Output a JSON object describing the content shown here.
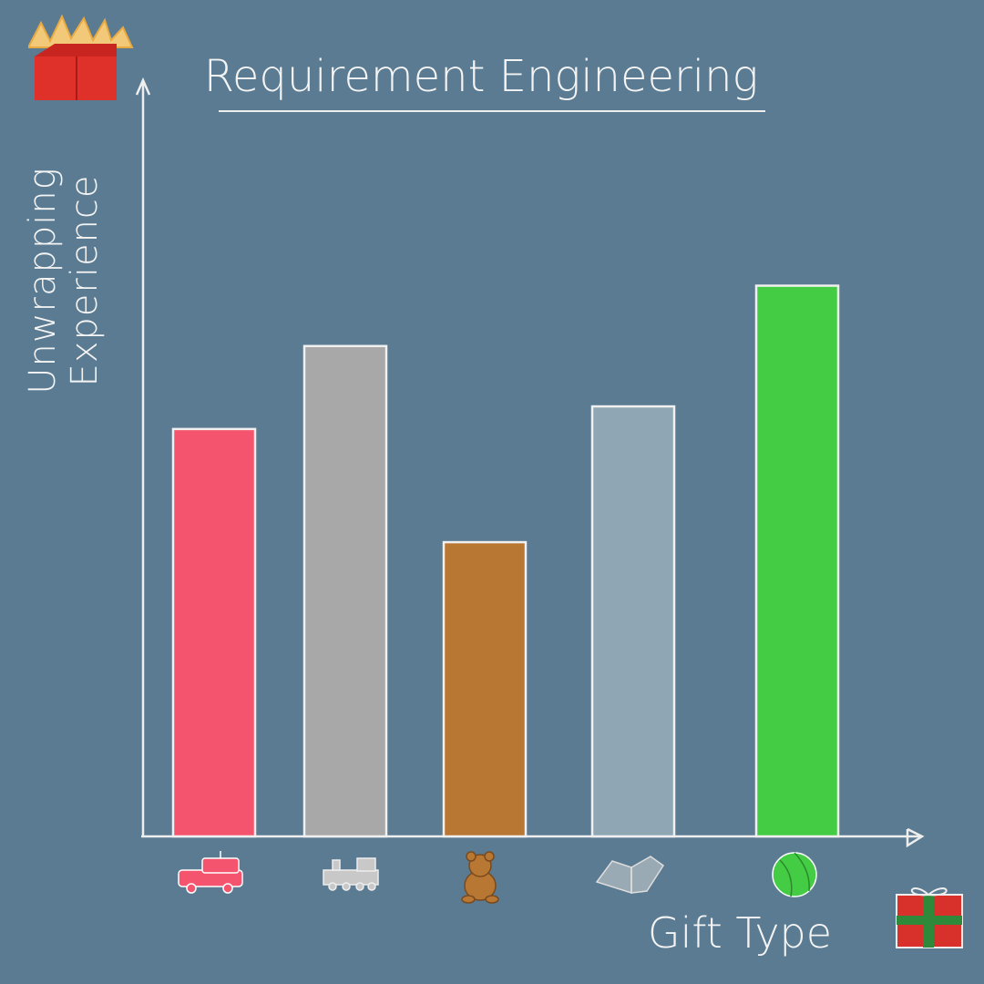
{
  "chart_data": {
    "type": "bar",
    "title": "Requirement Engineering",
    "x_label": "Gift Type",
    "y_label": "Unwrapping Experience",
    "categories": [
      null,
      null,
      null,
      null,
      null
    ],
    "values": [
      54,
      65,
      39,
      57,
      73
    ],
    "colors": [
      "#f4546e",
      "#a8a8a8",
      "#b87733",
      "#8fa7b4",
      "#43cc44"
    ],
    "ylim": [
      0,
      100
    ]
  }
}
